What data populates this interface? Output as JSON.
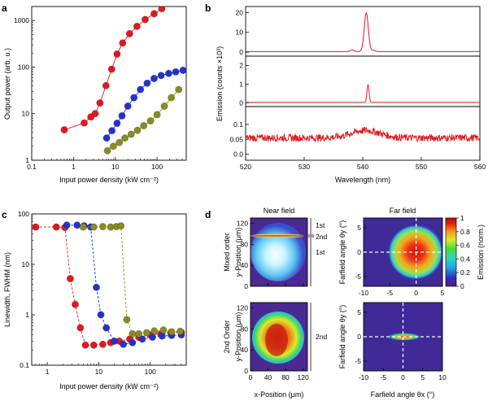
{
  "panels": {
    "a": "a",
    "b": "b",
    "c": "c",
    "d": "d"
  },
  "chart_data": [
    {
      "panel": "a",
      "type": "scatter",
      "xlabel": "Input power density (kW cm⁻²)",
      "ylabel": "Output power (arb. u.)",
      "x_scale": "log",
      "y_scale": "log",
      "xlim": [
        0.1,
        500
      ],
      "ylim": [
        1,
        2000
      ],
      "x_ticks": [
        {
          "v": 0.1,
          "t": "0.1"
        },
        {
          "v": 1,
          "t": "1"
        },
        {
          "v": 10,
          "t": "10"
        },
        {
          "v": 100,
          "t": "100"
        }
      ],
      "y_ticks": [
        {
          "v": 1,
          "t": "1"
        },
        {
          "v": 10,
          "t": "10"
        },
        {
          "v": 100,
          "t": "100"
        },
        {
          "v": 1000,
          "t": "1000"
        }
      ],
      "series": [
        {
          "color": "#e0191e",
          "x": [
            0.6,
            1.8,
            2.6,
            3.3,
            4.3,
            6.0,
            8.2,
            11,
            15,
            22,
            33,
            52,
            85,
            130
          ],
          "y": [
            4.5,
            6.3,
            8.5,
            10,
            17,
            40,
            90,
            190,
            330,
            520,
            750,
            1050,
            1400,
            1800
          ]
        },
        {
          "color": "#2233cc",
          "x": [
            6.2,
            8.3,
            11,
            14.5,
            20,
            28,
            40,
            58,
            85,
            125,
            190,
            280,
            420
          ],
          "y": [
            3.0,
            4.3,
            6.2,
            9.0,
            14.5,
            22,
            33,
            45,
            57,
            66,
            73,
            79,
            85
          ]
        },
        {
          "color": "#888b21",
          "x": [
            6.5,
            9,
            12.5,
            17,
            24,
            34,
            48,
            70,
            100,
            150,
            220,
            330
          ],
          "y": [
            1.6,
            2.0,
            2.4,
            3.0,
            3.6,
            4.4,
            5.5,
            7.0,
            9.5,
            14.5,
            22,
            33
          ]
        }
      ]
    },
    {
      "panel": "b",
      "type": "line",
      "xlabel": "Wavelength (nm)",
      "ylabel": "Emission (counts ×10³)",
      "xlim": [
        520,
        560
      ],
      "x_ticks": [
        520,
        530,
        540,
        550,
        560
      ],
      "color": "#e0191e",
      "subplots": [
        {
          "ylim": [
            -2,
            23
          ],
          "y_ticks": [
            {
              "v": 0,
              "t": "0"
            },
            {
              "v": 10,
              "t": "10"
            },
            {
              "v": 20,
              "t": "20"
            }
          ],
          "baseline": 0.3,
          "noise": 0,
          "peaks": [
            {
              "x": 540.6,
              "h": 19.5,
              "w": 0.35
            },
            {
              "x": 538.2,
              "h": 0.8,
              "w": 0.3
            },
            {
              "x": 541.8,
              "h": 0.6,
              "w": 0.3
            }
          ]
        },
        {
          "ylim": [
            -0.2,
            2.5
          ],
          "y_ticks": [
            {
              "v": 0,
              "t": "0"
            },
            {
              "v": 1,
              "t": "1"
            },
            {
              "v": 2,
              "t": "2"
            }
          ],
          "baseline": 0.02,
          "noise": 0,
          "peaks": [
            {
              "x": 540.9,
              "h": 0.95,
              "w": 0.18
            }
          ]
        },
        {
          "ylim": [
            -0.02,
            0.16
          ],
          "y_ticks": [
            {
              "v": 0.0,
              "t": "0.0"
            },
            {
              "v": 0.05,
              "t": "0.05"
            },
            {
              "v": 0.1,
              "t": "0.1"
            }
          ],
          "baseline": 0.055,
          "noise": 0.012,
          "peaks": [
            {
              "x": 540.5,
              "h": 0.025,
              "w": 2.5
            }
          ]
        }
      ]
    },
    {
      "panel": "c",
      "type": "scatter",
      "xlabel": "Input power density (kW cm⁻²)",
      "ylabel": "Linewidth, FWHM (nm)",
      "x_scale": "log",
      "y_scale": "log",
      "xlim": [
        0.5,
        500
      ],
      "ylim": [
        0.1,
        100
      ],
      "x_ticks": [
        {
          "v": 1,
          "t": "1"
        },
        {
          "v": 10,
          "t": "10"
        },
        {
          "v": 100,
          "t": "100"
        }
      ],
      "y_ticks": [
        {
          "v": 0.1,
          "t": "0.1"
        },
        {
          "v": 1,
          "t": "1"
        },
        {
          "v": 10,
          "t": "10"
        },
        {
          "v": 100,
          "t": "100"
        }
      ],
      "series": [
        {
          "color": "#e0191e",
          "x": [
            0.6,
            1.5,
            2.2,
            2.8,
            3.5,
            4.4,
            5.5,
            8,
            12,
            17,
            25,
            40,
            60,
            100,
            160,
            250,
            400
          ],
          "y": [
            55,
            55,
            54,
            5.2,
            1.6,
            0.55,
            0.25,
            0.25,
            0.26,
            0.28,
            0.3,
            0.33,
            0.36,
            0.4,
            0.42,
            0.44,
            0.45
          ]
        },
        {
          "color": "#2233cc",
          "x": [
            2.4,
            3.8,
            5.2,
            7,
            9,
            11,
            14,
            20,
            30,
            45,
            70,
            110,
            170,
            260,
            400
          ],
          "y": [
            60,
            60,
            58,
            55,
            3.5,
            1.0,
            0.55,
            0.3,
            0.26,
            0.28,
            0.33,
            0.36,
            0.38,
            0.39,
            0.4
          ]
        },
        {
          "color": "#888b21",
          "x": [
            5,
            8,
            12,
            17,
            22,
            27,
            35,
            45,
            60,
            85,
            120,
            180,
            260,
            380
          ],
          "y": [
            55,
            55,
            56,
            55,
            56,
            58,
            0.8,
            0.42,
            0.42,
            0.44,
            0.48,
            0.5,
            0.46,
            0.47
          ]
        }
      ]
    },
    {
      "panel": "d",
      "type": "heatmap",
      "columns": [
        "Near field",
        "Far field"
      ],
      "rows": [
        "Mixed order",
        "2nd Order"
      ],
      "near_xlabel": "x-Position (μm)",
      "near_ylabel": "y-Position (μm)",
      "near_ticks": [
        0,
        40,
        80,
        120
      ],
      "near_lim": [
        0,
        130
      ],
      "far_xlabel": "Farfield angle θx (°)",
      "far_ylabel": "Farfield angle θy (°)",
      "far_x_ticks": [
        -10,
        -5,
        0,
        5,
        10
      ],
      "far_y_ticks": [
        -5,
        0,
        5
      ],
      "far_top_xlim": [
        -10,
        5
      ],
      "far_bottom_xlim": [
        -10,
        10
      ],
      "colorbar_label": "Emission (norm.)",
      "colorbar_ticks": [
        0,
        0.2,
        0.4,
        0.6,
        0.8,
        1
      ],
      "colorbar_range": [
        0,
        1
      ],
      "order_labels": {
        "first": "1st",
        "second": "2nd"
      }
    }
  ]
}
